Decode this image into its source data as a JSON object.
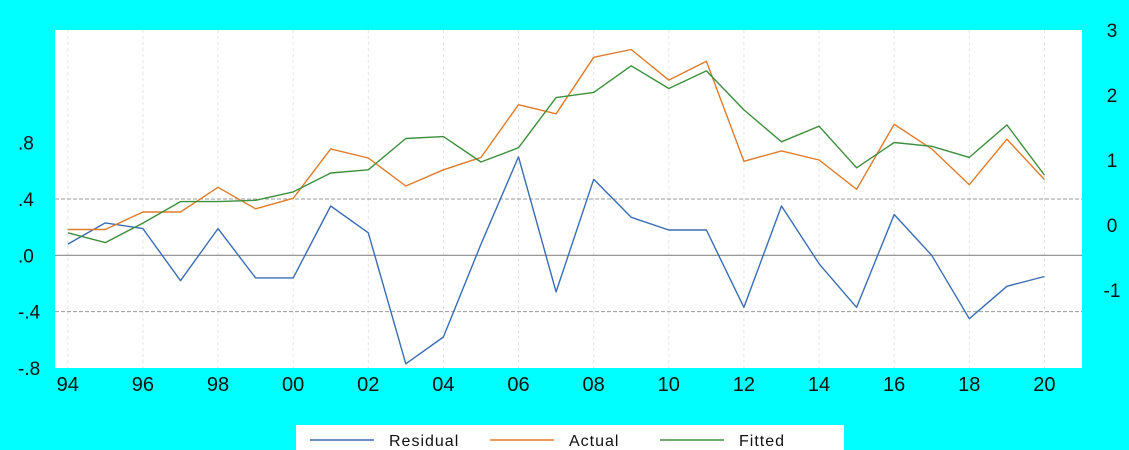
{
  "chart_data": {
    "type": "line",
    "x": [
      "1994",
      "1995",
      "1996",
      "1997",
      "1998",
      "1999",
      "2000",
      "2001",
      "2002",
      "2003",
      "2004",
      "2005",
      "2006",
      "2007",
      "2008",
      "2009",
      "2010",
      "2011",
      "2012",
      "2013",
      "2014",
      "2015",
      "2016",
      "2017",
      "2018",
      "2019",
      "2020"
    ],
    "x_tick_labels": [
      "94",
      "96",
      "98",
      "00",
      "02",
      "04",
      "06",
      "08",
      "10",
      "12",
      "14",
      "16",
      "18",
      "20"
    ],
    "left_axis": {
      "tick_labels": [
        "-.8",
        "-.4",
        ".0",
        ".4",
        ".8"
      ],
      "tick_values": [
        -0.8,
        -0.4,
        0.0,
        0.4,
        0.8
      ],
      "ylim": [
        -0.8,
        1.6
      ]
    },
    "right_axis": {
      "tick_labels": [
        "-1",
        "0",
        "1",
        "2",
        "3"
      ],
      "tick_values": [
        -1,
        0,
        1,
        2,
        3
      ],
      "ylim": [
        -2.2,
        3.0
      ]
    },
    "series": [
      {
        "name": "Residual",
        "axis": "left",
        "color": "#3A6DB4",
        "values": [
          0.08,
          0.23,
          0.19,
          -0.18,
          0.19,
          -0.16,
          -0.16,
          0.35,
          0.16,
          -0.77,
          -0.58,
          0.08,
          0.7,
          -0.26,
          0.54,
          0.27,
          0.18,
          0.18,
          -0.37,
          0.35,
          -0.06,
          -0.37,
          0.29,
          0.0,
          -0.45,
          -0.22,
          -0.15
        ]
      },
      {
        "name": "Actual",
        "axis": "right",
        "color": "#E07B2A",
        "values": [
          -0.07,
          -0.07,
          0.2,
          0.2,
          0.58,
          0.25,
          0.41,
          1.17,
          1.03,
          0.6,
          0.85,
          1.04,
          1.85,
          1.71,
          2.58,
          2.7,
          2.23,
          2.52,
          0.98,
          1.14,
          1.0,
          0.55,
          1.55,
          1.17,
          0.62,
          1.32,
          0.7
        ]
      },
      {
        "name": "Fitted",
        "axis": "right",
        "color": "#3C8F3C",
        "values": [
          -0.12,
          -0.27,
          0.03,
          0.36,
          0.36,
          0.38,
          0.51,
          0.8,
          0.85,
          1.33,
          1.36,
          0.97,
          1.19,
          1.96,
          2.04,
          2.45,
          2.1,
          2.37,
          1.77,
          1.28,
          1.52,
          0.88,
          1.27,
          1.21,
          1.04,
          1.54,
          0.77
        ]
      }
    ],
    "grid": {
      "vertical": true,
      "horizontal_dashed_at_left": [
        -0.4,
        0.4
      ],
      "solid_line_at_left": 0.0
    },
    "legend": {
      "position": "bottom-center",
      "entries": [
        "Residual",
        "Actual",
        "Fitted"
      ]
    }
  }
}
